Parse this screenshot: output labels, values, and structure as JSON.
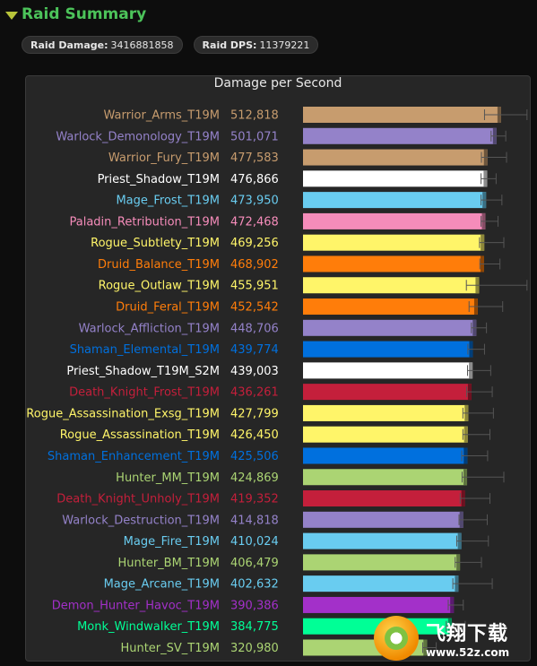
{
  "header": {
    "title": "Raid Summary"
  },
  "badges": {
    "raid_damage_label": "Raid Damage:",
    "raid_damage_value": "3416881858",
    "raid_dps_label": "Raid DPS:",
    "raid_dps_value": "11379221"
  },
  "watermark": {
    "cn": "飞翔下载",
    "url": "www.52z.com"
  },
  "colors": {
    "title_green": "#4cc35a",
    "warrior": "#c79c6e",
    "warlock": "#9482c9",
    "priest": "#ffffff",
    "mage": "#69ccf0",
    "paladin": "#f58cba",
    "rogue": "#fff569",
    "druid": "#ff7d0a",
    "shaman": "#0070de",
    "death_knight": "#c41f3b",
    "hunter": "#abd473",
    "demon_hunter": "#a330c9",
    "monk": "#00ff96"
  },
  "chart_data": {
    "type": "bar",
    "orientation": "horizontal",
    "title": "Damage per Second",
    "xlim": [
      0,
      650000
    ],
    "series": [
      {
        "name": "",
        "categories": [
          "Warrior_Arms_T19M",
          "Warlock_Demonology_T19M",
          "Warrior_Fury_T19M",
          "Priest_Shadow_T19M",
          "Mage_Frost_T19M",
          "Paladin_Retribution_T19M",
          "Rogue_Subtlety_T19M",
          "Druid_Balance_T19M",
          "Rogue_Outlaw_T19M",
          "Druid_Feral_T19M",
          "Warlock_Affliction_T19M",
          "Shaman_Elemental_T19M",
          "Priest_Shadow_T19M_S2M",
          "Death_Knight_Frost_T19M",
          "Rogue_Assassination_Exsg_T19M",
          "Rogue_Assassination_T19M",
          "Shaman_Enhancement_T19M",
          "Hunter_MM_T19M",
          "Death_Knight_Unholy_T19M",
          "Warlock_Destruction_T19M",
          "Mage_Fire_T19M",
          "Hunter_BM_T19M",
          "Mage_Arcane_T19M",
          "Demon_Hunter_Havoc_T19M",
          "Monk_Windwalker_T19M",
          "Hunter_SV_T19M"
        ],
        "value_labels": [
          "512,818",
          "501,071",
          "477,583",
          "476,866",
          "473,950",
          "472,468",
          "469,256",
          "468,902",
          "455,951",
          "452,542",
          "448,706",
          "439,774",
          "439,003",
          "436,261",
          "427,799",
          "426,450",
          "425,506",
          "424,869",
          "419,352",
          "414,818",
          "410,024",
          "406,479",
          "402,632",
          "390,386",
          "384,775",
          "320,980"
        ],
        "values": [
          512818,
          501071,
          477583,
          476866,
          473950,
          472468,
          469256,
          468902,
          455951,
          452542,
          448706,
          439774,
          439003,
          436261,
          427799,
          426450,
          425506,
          424869,
          419352,
          414818,
          410024,
          406479,
          402632,
          390386,
          384775,
          320980
        ],
        "colors": [
          "#c79c6e",
          "#9482c9",
          "#c79c6e",
          "#ffffff",
          "#69ccf0",
          "#f58cba",
          "#fff569",
          "#ff7d0a",
          "#fff569",
          "#ff7d0a",
          "#9482c9",
          "#0070de",
          "#ffffff",
          "#c41f3b",
          "#fff569",
          "#fff569",
          "#0070de",
          "#abd473",
          "#c41f3b",
          "#9482c9",
          "#69ccf0",
          "#abd473",
          "#69ccf0",
          "#a330c9",
          "#00ff96",
          "#abd473"
        ],
        "error_low": [
          470000,
          487000,
          462000,
          461000,
          461000,
          461000,
          457000,
          458000,
          423000,
          430000,
          436000,
          427000,
          426000,
          424000,
          414000,
          414000,
          411000,
          412000,
          407000,
          404000,
          398000,
          394000,
          388000,
          376000,
          371000,
          310000
        ],
        "error_high": [
          580000,
          525000,
          527000,
          500000,
          515000,
          505000,
          520000,
          510000,
          580000,
          517000,
          475000,
          470000,
          486000,
          490000,
          493000,
          484000,
          478000,
          520000,
          484000,
          477000,
          480000,
          462000,
          490000,
          415000,
          420000,
          345000
        ]
      }
    ]
  }
}
